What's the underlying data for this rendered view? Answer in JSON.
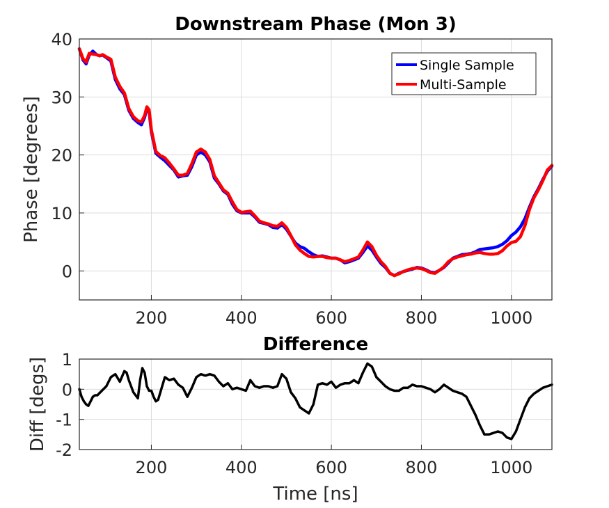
{
  "chart_data": [
    {
      "type": "line",
      "title": "Downstream Phase (Mon 3)",
      "xlabel": "",
      "ylabel": "Phase [degrees]",
      "xlim": [
        40,
        1090
      ],
      "ylim": [
        -5,
        40
      ],
      "xticks": [
        200,
        400,
        600,
        800,
        1000
      ],
      "yticks": [
        0,
        10,
        20,
        30,
        40
      ],
      "grid": true,
      "legend": "top-right",
      "series": [
        {
          "name": "Single Sample",
          "color": "#0000ff",
          "x": [
            40,
            48,
            55,
            62,
            70,
            78,
            85,
            92,
            100,
            110,
            120,
            130,
            140,
            150,
            160,
            170,
            178,
            185,
            190,
            195,
            200,
            210,
            220,
            230,
            240,
            250,
            260,
            270,
            280,
            290,
            300,
            310,
            320,
            330,
            340,
            350,
            360,
            370,
            380,
            390,
            400,
            410,
            420,
            430,
            440,
            450,
            460,
            470,
            480,
            490,
            500,
            510,
            520,
            530,
            540,
            550,
            560,
            570,
            580,
            590,
            600,
            610,
            620,
            630,
            640,
            650,
            660,
            670,
            680,
            690,
            700,
            710,
            720,
            730,
            740,
            750,
            760,
            770,
            780,
            790,
            800,
            810,
            820,
            830,
            840,
            850,
            860,
            870,
            880,
            890,
            900,
            910,
            920,
            930,
            940,
            950,
            960,
            970,
            980,
            990,
            1000,
            1010,
            1020,
            1030,
            1040,
            1050,
            1060,
            1070,
            1080,
            1090
          ],
          "y": [
            38.3,
            36.4,
            35.7,
            37.2,
            37.9,
            37.3,
            37.1,
            37.2,
            36.8,
            36.2,
            33.0,
            31.4,
            30.4,
            27.7,
            26.3,
            25.6,
            25.2,
            26.5,
            28.0,
            27.5,
            24.0,
            20.3,
            19.6,
            19.0,
            18.2,
            17.4,
            16.2,
            16.4,
            16.5,
            18.0,
            20.0,
            20.5,
            20.0,
            18.8,
            16.0,
            15.0,
            13.8,
            13.2,
            11.5,
            10.4,
            10.0,
            10.0,
            10.0,
            9.3,
            8.4,
            8.2,
            8.0,
            7.5,
            7.4,
            8.0,
            7.2,
            6.0,
            4.8,
            4.2,
            3.9,
            3.3,
            2.8,
            2.5,
            2.6,
            2.4,
            2.2,
            2.2,
            1.9,
            1.4,
            1.6,
            1.9,
            2.2,
            3.2,
            4.3,
            3.6,
            2.4,
            1.3,
            0.6,
            -0.4,
            -0.8,
            -0.4,
            -0.1,
            0.1,
            0.3,
            0.6,
            0.5,
            0.2,
            -0.2,
            -0.3,
            0.1,
            0.6,
            1.4,
            2.2,
            2.5,
            2.8,
            2.9,
            3.0,
            3.3,
            3.7,
            3.8,
            3.9,
            4.0,
            4.2,
            4.6,
            5.2,
            6.1,
            6.7,
            7.6,
            9.0,
            11.0,
            12.8,
            14.2,
            15.8,
            17.2,
            18.1
          ]
        },
        {
          "name": "Multi-Sample",
          "color": "#ff0000",
          "x": [
            40,
            48,
            55,
            62,
            70,
            78,
            85,
            92,
            100,
            110,
            120,
            130,
            140,
            150,
            160,
            170,
            178,
            185,
            190,
            195,
            200,
            210,
            220,
            230,
            240,
            250,
            260,
            270,
            280,
            290,
            300,
            310,
            320,
            330,
            340,
            350,
            360,
            370,
            380,
            390,
            400,
            410,
            420,
            430,
            440,
            450,
            460,
            470,
            480,
            490,
            500,
            510,
            520,
            530,
            540,
            550,
            560,
            570,
            580,
            590,
            600,
            610,
            620,
            630,
            640,
            650,
            660,
            670,
            680,
            690,
            700,
            710,
            720,
            730,
            740,
            750,
            760,
            770,
            780,
            790,
            800,
            810,
            820,
            830,
            840,
            850,
            860,
            870,
            880,
            890,
            900,
            910,
            920,
            930,
            940,
            950,
            960,
            970,
            980,
            990,
            1000,
            1010,
            1020,
            1030,
            1040,
            1050,
            1060,
            1070,
            1080,
            1090
          ],
          "y": [
            38.3,
            36.6,
            36.0,
            37.5,
            37.4,
            37.3,
            37.1,
            37.3,
            36.9,
            36.5,
            33.4,
            31.8,
            30.7,
            28.0,
            26.6,
            25.9,
            25.7,
            26.8,
            28.3,
            27.8,
            24.3,
            20.6,
            19.9,
            19.5,
            18.6,
            17.6,
            16.5,
            16.5,
            16.8,
            18.5,
            20.5,
            21.0,
            20.5,
            19.2,
            16.4,
            15.2,
            14.0,
            13.4,
            11.9,
            10.6,
            10.1,
            10.2,
            10.3,
            9.5,
            8.6,
            8.3,
            8.1,
            7.8,
            7.7,
            8.3,
            7.5,
            6.1,
            4.5,
            3.6,
            3.0,
            2.5,
            2.4,
            2.5,
            2.5,
            2.3,
            2.2,
            2.2,
            1.9,
            1.6,
            1.8,
            2.1,
            2.4,
            3.6,
            5.0,
            4.2,
            2.7,
            1.6,
            0.8,
            -0.4,
            -0.8,
            -0.5,
            -0.1,
            0.2,
            0.4,
            0.5,
            0.4,
            0.1,
            -0.3,
            -0.4,
            0.1,
            0.7,
            1.6,
            2.1,
            2.4,
            2.6,
            2.8,
            2.9,
            3.1,
            3.2,
            3.0,
            2.9,
            2.9,
            3.0,
            3.5,
            4.3,
            4.9,
            5.1,
            5.9,
            7.8,
            10.6,
            12.6,
            14.0,
            15.6,
            17.4,
            18.2
          ]
        }
      ]
    },
    {
      "type": "line",
      "title": "Difference",
      "xlabel": "Time [ns]",
      "ylabel": "Diff [degs]",
      "xlim": [
        40,
        1090
      ],
      "ylim": [
        -2,
        1
      ],
      "xticks": [
        200,
        400,
        600,
        800,
        1000
      ],
      "yticks": [
        -2,
        -1,
        0,
        1
      ],
      "grid": true,
      "series": [
        {
          "color": "#000000",
          "x": [
            40,
            45,
            50,
            55,
            60,
            65,
            70,
            75,
            80,
            90,
            100,
            110,
            120,
            130,
            140,
            145,
            150,
            160,
            165,
            170,
            175,
            180,
            185,
            190,
            195,
            200,
            205,
            210,
            215,
            220,
            230,
            240,
            250,
            260,
            270,
            280,
            290,
            300,
            310,
            320,
            330,
            340,
            350,
            360,
            370,
            380,
            390,
            400,
            410,
            420,
            430,
            440,
            450,
            460,
            470,
            480,
            490,
            500,
            510,
            520,
            530,
            540,
            550,
            560,
            570,
            580,
            590,
            600,
            610,
            620,
            630,
            640,
            650,
            660,
            670,
            680,
            690,
            700,
            710,
            720,
            730,
            740,
            750,
            760,
            770,
            780,
            790,
            800,
            810,
            820,
            830,
            840,
            850,
            860,
            870,
            880,
            890,
            900,
            910,
            920,
            930,
            940,
            950,
            960,
            970,
            980,
            990,
            1000,
            1010,
            1020,
            1030,
            1040,
            1050,
            1060,
            1070,
            1080,
            1090
          ],
          "y": [
            0,
            -0.25,
            -0.4,
            -0.5,
            -0.55,
            -0.4,
            -0.25,
            -0.2,
            -0.2,
            -0.05,
            0.1,
            0.4,
            0.5,
            0.25,
            0.6,
            0.55,
            0.3,
            -0.1,
            -0.2,
            -0.3,
            0.3,
            0.7,
            0.55,
            0.1,
            -0.05,
            -0.05,
            -0.25,
            -0.4,
            -0.35,
            -0.1,
            0.4,
            0.3,
            0.35,
            0.15,
            0.05,
            -0.25,
            0.05,
            0.4,
            0.5,
            0.45,
            0.5,
            0.45,
            0.25,
            0.1,
            0.2,
            0.0,
            0.05,
            0.0,
            -0.05,
            0.3,
            0.1,
            0.05,
            0.1,
            0.1,
            0.05,
            0.1,
            0.5,
            0.35,
            -0.1,
            -0.3,
            -0.6,
            -0.7,
            -0.8,
            -0.5,
            0.15,
            0.2,
            0.15,
            0.25,
            0.05,
            0.15,
            0.2,
            0.2,
            0.3,
            0.2,
            0.55,
            0.85,
            0.75,
            0.4,
            0.25,
            0.1,
            0.0,
            -0.05,
            -0.05,
            0.05,
            0.05,
            0.15,
            0.1,
            0.1,
            0.05,
            0.0,
            -0.1,
            0.0,
            0.15,
            0.05,
            -0.05,
            -0.1,
            -0.15,
            -0.25,
            -0.55,
            -0.85,
            -1.2,
            -1.5,
            -1.5,
            -1.45,
            -1.4,
            -1.45,
            -1.6,
            -1.65,
            -1.4,
            -1.0,
            -0.6,
            -0.3,
            -0.15,
            -0.05,
            0.05,
            0.1,
            0.15
          ]
        }
      ]
    }
  ]
}
